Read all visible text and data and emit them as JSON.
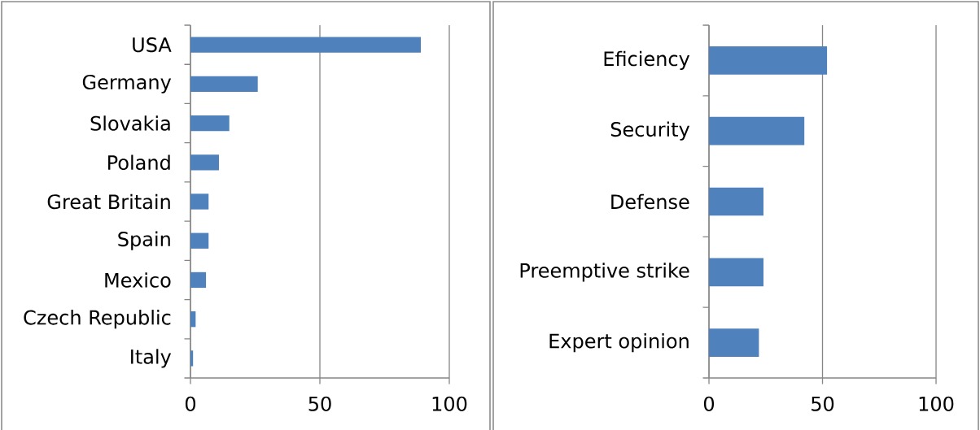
{
  "chart_data": [
    {
      "type": "bar",
      "orientation": "horizontal",
      "categories": [
        "USA",
        "Germany",
        "Slovakia",
        "Poland",
        "Great Britain",
        "Spain",
        "Mexico",
        "Czech Republic",
        "Italy"
      ],
      "values": [
        89,
        26,
        15,
        11,
        7,
        7,
        6,
        2,
        1
      ],
      "color": "#4f81bd",
      "xlim": [
        0,
        100
      ],
      "xticks": [
        0,
        50,
        100
      ],
      "grid": "x"
    },
    {
      "type": "bar",
      "orientation": "horizontal",
      "categories": [
        "Eficiency",
        "Security",
        "Defense",
        "Preemptive strike",
        "Expert opinion"
      ],
      "values": [
        52,
        42,
        24,
        24,
        22
      ],
      "color": "#4f81bd",
      "xlim": [
        0,
        100
      ],
      "xticks": [
        0,
        50,
        100
      ],
      "grid": "x"
    }
  ]
}
